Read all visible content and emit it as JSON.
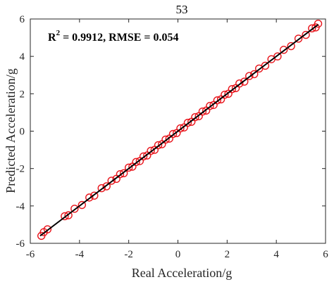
{
  "chart_data": {
    "type": "scatter",
    "title": "53",
    "xlabel": "Real Acceleration/g",
    "ylabel": "Predicted Acceleration/g",
    "xlim": [
      -6,
      6
    ],
    "ylim": [
      -6,
      6
    ],
    "xticks": [
      "-6",
      "-4",
      "-2",
      "0",
      "2",
      "4",
      "6"
    ],
    "yticks": [
      "-6",
      "-4",
      "-2",
      "0",
      "2",
      "4",
      "6"
    ],
    "annotation": {
      "r2_label": "R",
      "r2_exp": "2",
      "r2_text": " = 0.9912, RMSE = 0.054"
    },
    "fit_line": {
      "x": [
        -5.6,
        5.7
      ],
      "y": [
        -5.6,
        5.7
      ]
    },
    "series": [
      {
        "marker": "circle-open",
        "x": [
          -5.55,
          -5.45,
          -5.3,
          -4.6,
          -4.45,
          -4.2,
          -3.9,
          -3.6,
          -3.4,
          -3.1,
          -2.9,
          -2.7,
          -2.5,
          -2.35,
          -2.2,
          -2.0,
          -1.85,
          -1.7,
          -1.55,
          -1.4,
          -1.25,
          -1.1,
          -0.95,
          -0.8,
          -0.65,
          -0.5,
          -0.35,
          -0.2,
          -0.05,
          0.1,
          0.25,
          0.4,
          0.55,
          0.7,
          0.85,
          1.0,
          1.15,
          1.3,
          1.45,
          1.6,
          1.75,
          1.9,
          2.05,
          2.2,
          2.35,
          2.5,
          2.7,
          2.9,
          3.1,
          3.3,
          3.55,
          3.8,
          4.05,
          4.3,
          4.6,
          4.9,
          5.2,
          5.45,
          5.6,
          5.7
        ],
        "y": [
          -5.6,
          -5.4,
          -5.25,
          -4.55,
          -4.5,
          -4.15,
          -3.95,
          -3.55,
          -3.45,
          -3.05,
          -2.95,
          -2.65,
          -2.55,
          -2.3,
          -2.25,
          -1.95,
          -1.9,
          -1.65,
          -1.6,
          -1.35,
          -1.3,
          -1.05,
          -1.0,
          -0.75,
          -0.7,
          -0.45,
          -0.4,
          -0.15,
          -0.1,
          0.15,
          0.2,
          0.45,
          0.5,
          0.75,
          0.8,
          1.05,
          1.1,
          1.35,
          1.4,
          1.65,
          1.7,
          1.95,
          2.0,
          2.25,
          2.3,
          2.55,
          2.65,
          2.95,
          3.05,
          3.35,
          3.5,
          3.85,
          4.0,
          4.35,
          4.55,
          4.95,
          5.15,
          5.5,
          5.55,
          5.75
        ]
      }
    ],
    "colors": {
      "points": "#e8141b",
      "fit_line": "#000000",
      "axis": "#262626"
    }
  }
}
